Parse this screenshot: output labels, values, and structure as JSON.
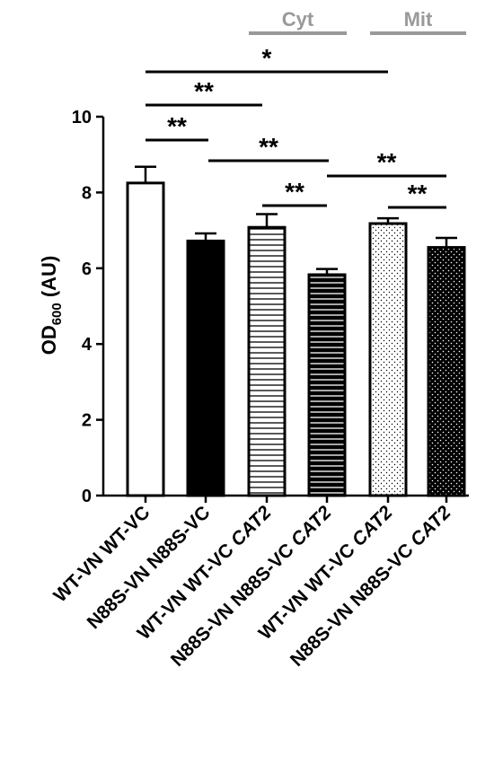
{
  "chart_data": {
    "type": "bar",
    "ylabel": "OD",
    "ylabel_sub": "600",
    "ylabel_unit": " (AU)",
    "ylim": [
      0,
      10
    ],
    "yticks": [
      "0",
      "2",
      "4",
      "6",
      "8",
      "10"
    ],
    "grid": false,
    "categories": [
      {
        "prefix": "WT-VN WT-VC",
        "italic": ""
      },
      {
        "prefix": "N88S-VN N88S-VC",
        "italic": ""
      },
      {
        "prefix": "WT-VN WT-VC ",
        "italic": "CAT2"
      },
      {
        "prefix": "N88S-VN N88S-VC ",
        "italic": "CAT2"
      },
      {
        "prefix": "WT-VN WT-VC ",
        "italic": "CAT2"
      },
      {
        "prefix": "N88S-VN N88S-VC ",
        "italic": "CAT2"
      }
    ],
    "values": [
      8.25,
      6.72,
      7.08,
      5.83,
      7.18,
      6.55
    ],
    "errors": [
      0.43,
      0.2,
      0.35,
      0.15,
      0.14,
      0.25
    ],
    "fills": [
      "white",
      "black",
      "hlines-white",
      "hlines-black",
      "dots-white",
      "dots-black"
    ],
    "groups": [
      {
        "label": "Cyt",
        "from": 2,
        "to": 3
      },
      {
        "label": "Mit",
        "from": 4,
        "to": 5
      }
    ],
    "group_color": "#999999",
    "significance": [
      {
        "from": 0,
        "to": 4,
        "label": "*"
      },
      {
        "from": 0,
        "to": 2,
        "label": "**"
      },
      {
        "from": 0,
        "to": 1,
        "label": "**"
      },
      {
        "from": 1,
        "to": 3,
        "label": "**"
      },
      {
        "from": 2,
        "to": 3,
        "label": "**"
      },
      {
        "from": 3,
        "to": 5,
        "label": "**"
      },
      {
        "from": 4,
        "to": 5,
        "label": "**"
      }
    ]
  }
}
